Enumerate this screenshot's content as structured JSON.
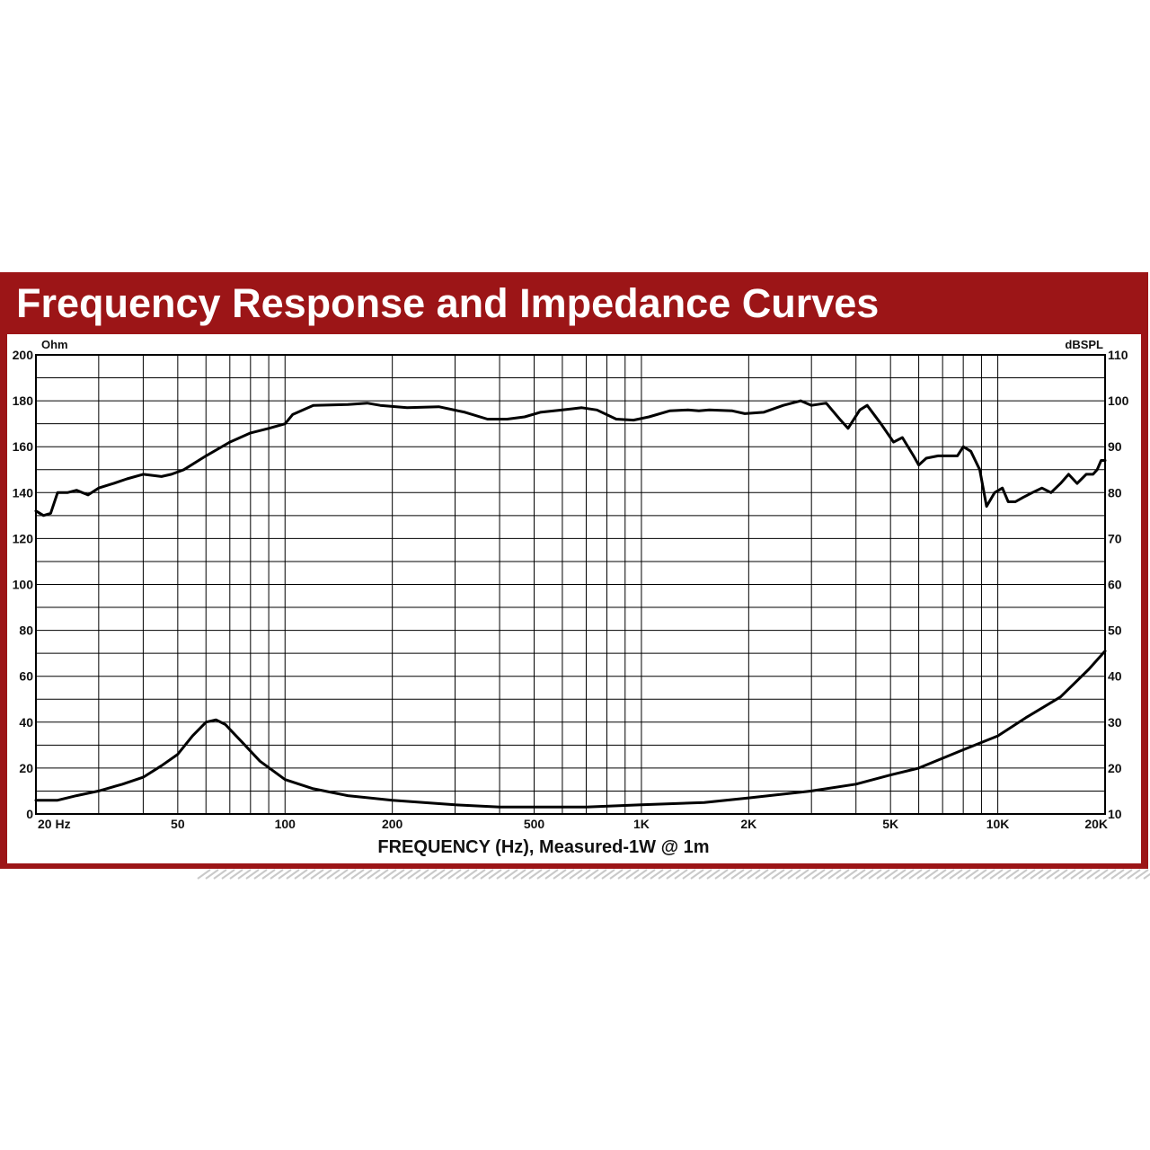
{
  "title": "Frequency Response and Impedance Curves",
  "chart_data": {
    "type": "line",
    "title": "Frequency Response and Impedance Curves",
    "xlabel": "FREQUENCY (Hz), Measured-1W @ 1m",
    "ylabel_left": "Ohm",
    "ylabel_right": "dBSPL",
    "x_scale": "log",
    "xlim": [
      20,
      20000
    ],
    "ylim_left": [
      0,
      200
    ],
    "ylim_right": [
      10,
      110
    ],
    "grid": true,
    "x_ticks": [
      {
        "value": 20,
        "label": "20 Hz"
      },
      {
        "value": 50,
        "label": "50"
      },
      {
        "value": 100,
        "label": "100"
      },
      {
        "value": 200,
        "label": "200"
      },
      {
        "value": 500,
        "label": "500"
      },
      {
        "value": 1000,
        "label": "1K"
      },
      {
        "value": 2000,
        "label": "2K"
      },
      {
        "value": 5000,
        "label": "5K"
      },
      {
        "value": 10000,
        "label": "10K"
      },
      {
        "value": 20000,
        "label": "20K"
      }
    ],
    "y_ticks_left": [
      "0",
      "20",
      "40",
      "60",
      "80",
      "100",
      "120",
      "140",
      "160",
      "180",
      "200"
    ],
    "y_ticks_right": [
      "10",
      "20",
      "30",
      "40",
      "50",
      "60",
      "70",
      "80",
      "90",
      "100",
      "110"
    ],
    "series": [
      {
        "axis": "right",
        "points": [
          [
            20,
            76
          ],
          [
            21,
            75
          ],
          [
            22,
            75.5
          ],
          [
            23,
            80
          ],
          [
            24.5,
            80
          ],
          [
            26,
            80.5
          ],
          [
            28,
            79.5
          ],
          [
            30,
            81
          ],
          [
            33,
            82
          ],
          [
            36,
            83
          ],
          [
            40,
            84
          ],
          [
            45,
            83.5
          ],
          [
            48,
            84
          ],
          [
            52,
            85
          ],
          [
            60,
            88
          ],
          [
            70,
            91
          ],
          [
            80,
            93
          ],
          [
            90,
            94
          ],
          [
            100,
            95
          ],
          [
            105,
            97
          ],
          [
            120,
            99
          ],
          [
            150,
            99.2
          ],
          [
            170,
            99.5
          ],
          [
            185,
            99
          ],
          [
            220,
            98.5
          ],
          [
            270,
            98.7
          ],
          [
            320,
            97.5
          ],
          [
            370,
            96
          ],
          [
            420,
            96
          ],
          [
            470,
            96.5
          ],
          [
            520,
            97.5
          ],
          [
            600,
            98
          ],
          [
            680,
            98.5
          ],
          [
            750,
            98
          ],
          [
            850,
            96
          ],
          [
            950,
            95.8
          ],
          [
            1050,
            96.5
          ],
          [
            1200,
            97.8
          ],
          [
            1350,
            98
          ],
          [
            1450,
            97.8
          ],
          [
            1550,
            98
          ],
          [
            1800,
            97.8
          ],
          [
            1950,
            97.2
          ],
          [
            2200,
            97.5
          ],
          [
            2500,
            99
          ],
          [
            2800,
            100
          ],
          [
            3000,
            99
          ],
          [
            3300,
            99.5
          ],
          [
            3600,
            96
          ],
          [
            3800,
            94
          ],
          [
            4100,
            98
          ],
          [
            4300,
            99
          ],
          [
            4700,
            95
          ],
          [
            5100,
            91
          ],
          [
            5400,
            92
          ],
          [
            5800,
            88
          ],
          [
            6000,
            86
          ],
          [
            6300,
            87.5
          ],
          [
            6800,
            88
          ],
          [
            7200,
            88
          ],
          [
            7700,
            88
          ],
          [
            8000,
            90
          ],
          [
            8400,
            89
          ],
          [
            8900,
            85
          ],
          [
            9300,
            77
          ],
          [
            9800,
            80
          ],
          [
            10300,
            81
          ],
          [
            10700,
            78
          ],
          [
            11200,
            78
          ],
          [
            11800,
            79
          ],
          [
            12500,
            80
          ],
          [
            13300,
            81
          ],
          [
            14100,
            80
          ],
          [
            15000,
            82
          ],
          [
            15800,
            84
          ],
          [
            16700,
            82
          ],
          [
            17700,
            84
          ],
          [
            18500,
            84
          ],
          [
            19000,
            85
          ],
          [
            19500,
            87
          ],
          [
            20000,
            87
          ]
        ]
      },
      {
        "axis": "left",
        "points": [
          [
            20,
            6
          ],
          [
            23,
            6
          ],
          [
            26,
            8
          ],
          [
            30,
            10
          ],
          [
            35,
            13
          ],
          [
            40,
            16
          ],
          [
            45,
            21
          ],
          [
            50,
            26
          ],
          [
            55,
            34
          ],
          [
            60,
            40
          ],
          [
            64,
            41
          ],
          [
            68,
            39
          ],
          [
            75,
            32
          ],
          [
            85,
            23
          ],
          [
            100,
            15
          ],
          [
            120,
            11
          ],
          [
            150,
            8
          ],
          [
            200,
            6
          ],
          [
            300,
            4
          ],
          [
            400,
            3
          ],
          [
            500,
            3
          ],
          [
            700,
            3
          ],
          [
            1000,
            4
          ],
          [
            1500,
            5
          ],
          [
            2000,
            7
          ],
          [
            3000,
            10
          ],
          [
            4000,
            13
          ],
          [
            5000,
            17
          ],
          [
            6000,
            20
          ],
          [
            8000,
            28
          ],
          [
            10000,
            34
          ],
          [
            12000,
            42
          ],
          [
            15000,
            51
          ],
          [
            18000,
            63
          ],
          [
            20000,
            71
          ]
        ]
      }
    ]
  }
}
